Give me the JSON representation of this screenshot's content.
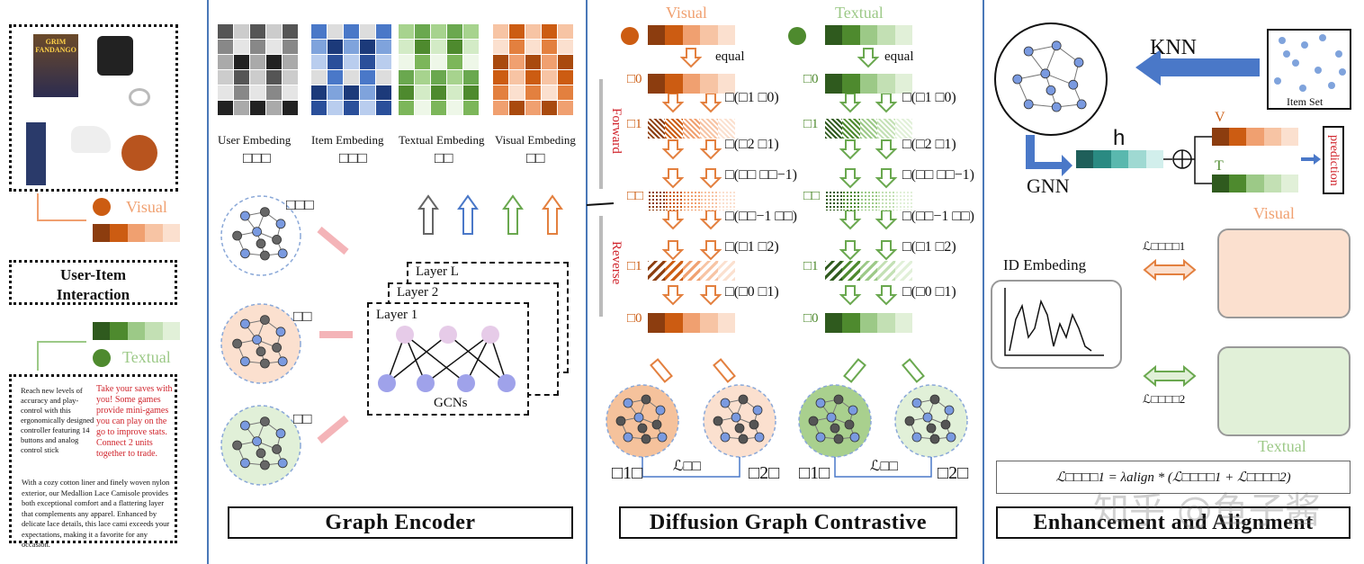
{
  "colors": {
    "orange": [
      "#8c3d0f",
      "#cc5c12",
      "#f0a070",
      "#f7c4a4",
      "#fbe0cf"
    ],
    "green": [
      "#2f5a1e",
      "#4e8a2e",
      "#9cc987",
      "#c3e0b4",
      "#e1f0d8"
    ],
    "divider": "#4a78b8",
    "label_red": "#d0242c"
  },
  "left": {
    "visual_label": "Visual",
    "textual_label": "Textual",
    "interaction_label": "User-Item Interaction",
    "product_text_1": "Reach new levels of accuracy and play-control with this ergonomically designed controller featuring 14 buttons and analog control stick",
    "product_text_2": "Take your saves with you! Some games provide mini-games you can play on the go to improve stats. Connect 2 units together to trade.",
    "product_text_3": "With a cozy cotton liner and finely woven nylon exterior, our Medallion Lace Camisole provides both exceptional comfort and a flattering layer that complements any apparel. Enhanced by delicate lace details, this lace cami exceeds your expectations, making it a favorite for any occasion.",
    "product_image_caption": "GRIM FANDANGO"
  },
  "encoder": {
    "title": "Graph Encoder",
    "embeddings": [
      {
        "label": "User Embeding",
        "symbol": "□□□"
      },
      {
        "label": "Item Embeding",
        "symbol": "□□□"
      },
      {
        "label": "Textual Embeding",
        "symbol": "□□"
      },
      {
        "label": "Visual Embeding",
        "symbol": "□□"
      }
    ],
    "graph_symbols": [
      "□□□",
      "□□",
      "□□"
    ],
    "layers": [
      "Layer L",
      "Layer 2",
      "Layer 1"
    ],
    "gcn_label": "GCNs"
  },
  "diffusion": {
    "title": "Diffusion Graph Contrastive",
    "visual_label": "Visual",
    "textual_label": "Textual",
    "equal_label": "equal",
    "forward_label": "Forward",
    "reverse_label": "Reverse",
    "row_labels": [
      "□0",
      "□1",
      "□□",
      "□1",
      "□0"
    ],
    "step_labels": [
      "□(□1  □0)",
      "□(□2  □1)",
      "□(□□ □□−1)",
      "□(□□−1  □□)",
      "□(□1  □2)",
      "□(□0  □1)"
    ],
    "loss_label": "ℒ□□",
    "view_labels": [
      "□1□",
      "□2□"
    ]
  },
  "enhance": {
    "title": "Enhancement and Alignment",
    "knn_label": "KNN",
    "item_set_label": "Item Set",
    "h_label": "h",
    "gnn_label": "GNN",
    "v_label": "V",
    "t_label": "T",
    "prediction_label": "prediction",
    "visual_label": "Visual",
    "textual_label": "Textual",
    "id_label": "ID Embeding",
    "loss1_label": "ℒ□□□□1",
    "loss2_label": "ℒ□□□□2",
    "formula": "ℒ□□□□1  =  λalign  *  (ℒ□□□□1  +  ℒ□□□□2)",
    "watermark": "知乎 @鱼子酱"
  }
}
